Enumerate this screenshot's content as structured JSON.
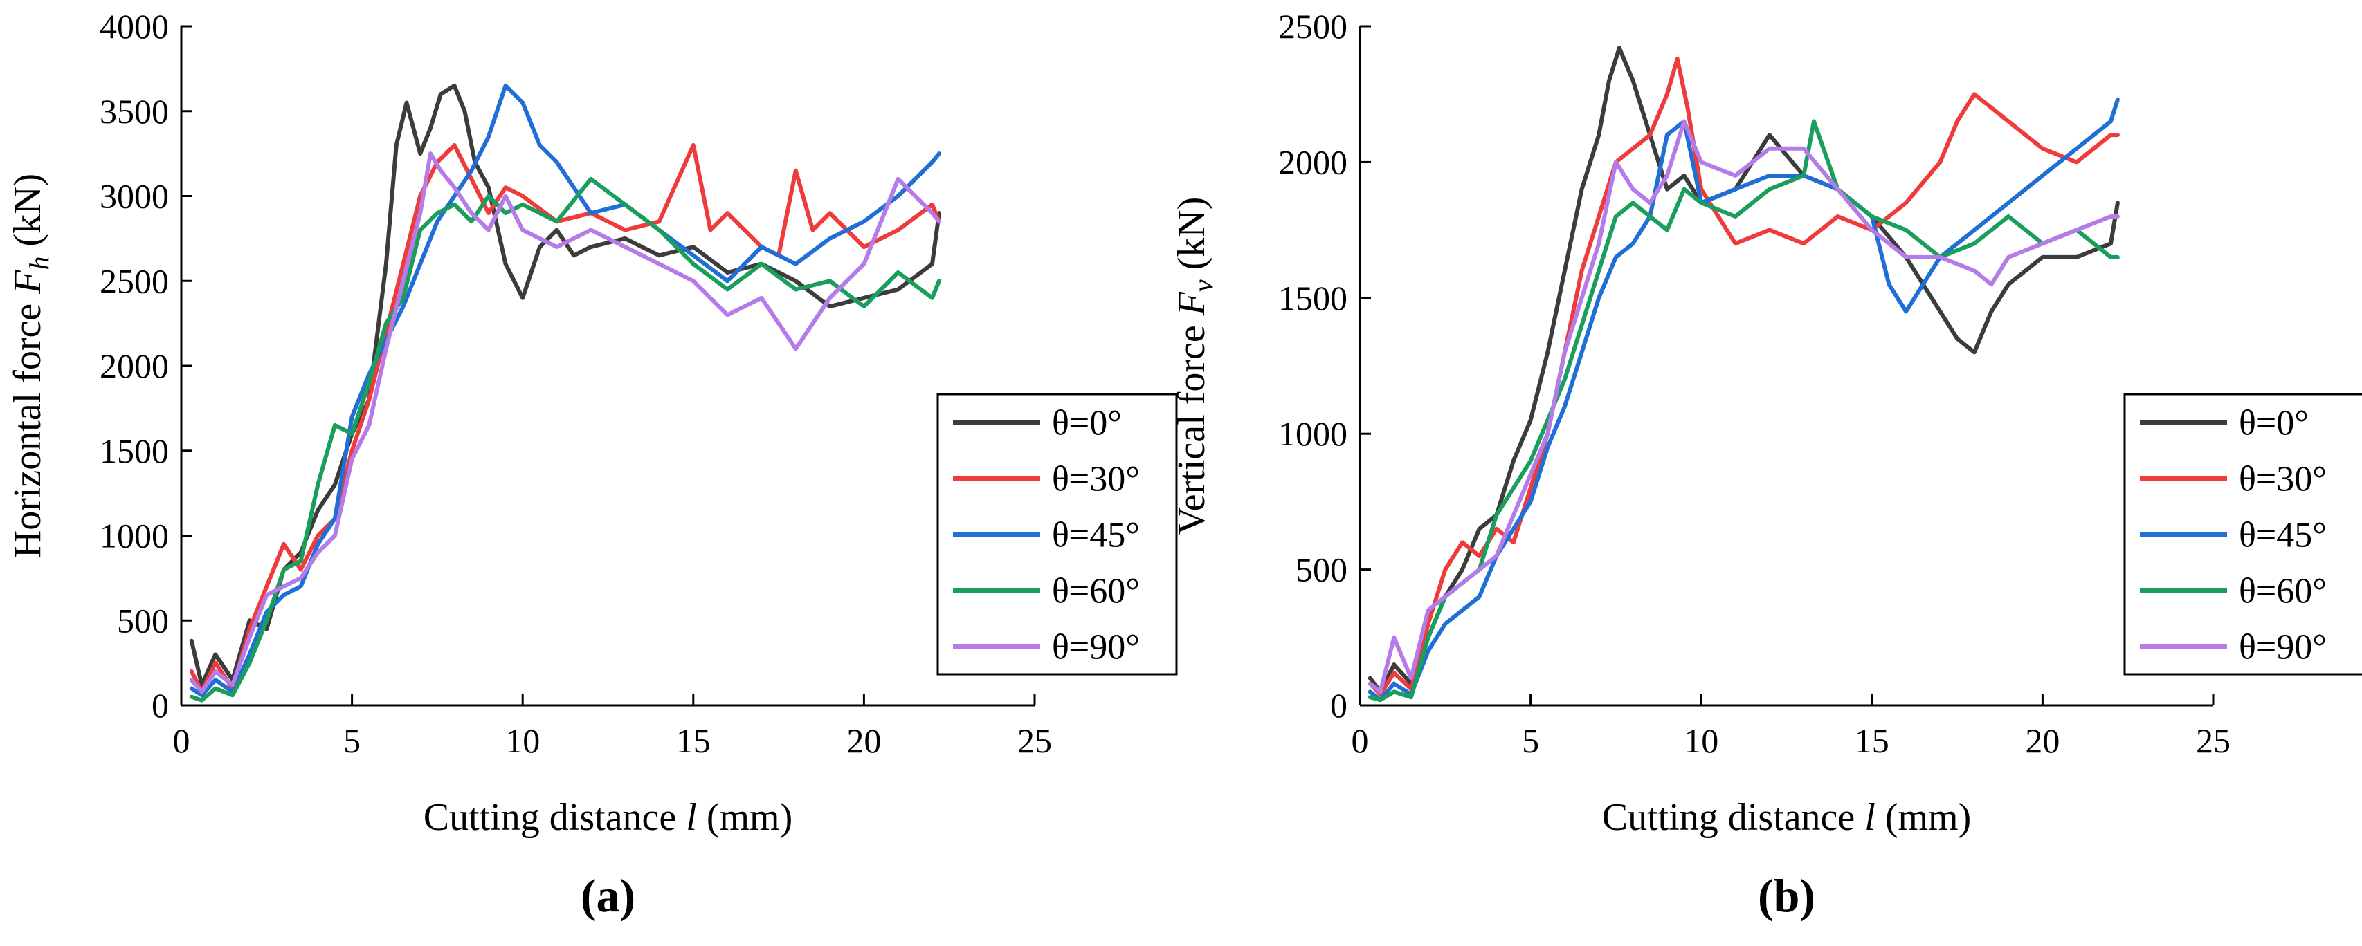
{
  "chart_data": [
    {
      "panel": "(a)",
      "type": "line",
      "xlabel": "Cutting distance",
      "xlabel_symbol": "l",
      "xlabel_unit": "(mm)",
      "ylabel": "Horizontal force",
      "ylabel_symbol": "F",
      "ylabel_subscript": "h",
      "ylabel_unit": "(kN)",
      "xlim": [
        0,
        25
      ],
      "ylim": [
        0,
        4000
      ],
      "xticks": [
        0,
        5,
        10,
        15,
        20,
        25
      ],
      "yticks": [
        0,
        500,
        1000,
        1500,
        2000,
        2500,
        3000,
        3500,
        4000
      ],
      "legend_position": "right-middle",
      "series": [
        {
          "name": "θ=0°",
          "color": "#3c3c3c",
          "x": [
            0.3,
            0.6,
            1.0,
            1.5,
            2.0,
            2.5,
            3.0,
            3.5,
            4.0,
            4.5,
            5.0,
            5.5,
            6.0,
            6.3,
            6.6,
            7.0,
            7.3,
            7.6,
            8.0,
            8.3,
            8.6,
            9.0,
            9.5,
            10.0,
            10.5,
            11.0,
            11.5,
            12.0,
            13.0,
            14.0,
            15.0,
            16.0,
            17.0,
            18.0,
            19.0,
            20.0,
            21.0,
            22.0,
            22.2
          ],
          "y": [
            380,
            120,
            300,
            150,
            500,
            450,
            800,
            900,
            1150,
            1300,
            1600,
            1800,
            2600,
            3300,
            3550,
            3250,
            3400,
            3600,
            3650,
            3500,
            3200,
            3050,
            2600,
            2400,
            2700,
            2800,
            2650,
            2700,
            2750,
            2650,
            2700,
            2550,
            2600,
            2500,
            2350,
            2400,
            2450,
            2600,
            2900
          ]
        },
        {
          "name": "θ=30°",
          "color": "#ee3b3b",
          "x": [
            0.3,
            0.6,
            1.0,
            1.5,
            2.0,
            2.5,
            3.0,
            3.5,
            4.0,
            4.5,
            5.0,
            5.5,
            6.0,
            6.5,
            7.0,
            7.5,
            8.0,
            8.5,
            9.0,
            9.5,
            10.0,
            11.0,
            12.0,
            13.0,
            14.0,
            15.0,
            15.5,
            16.0,
            17.0,
            17.5,
            18.0,
            18.5,
            19.0,
            20.0,
            21.0,
            22.0,
            22.2
          ],
          "y": [
            200,
            80,
            250,
            100,
            450,
            700,
            950,
            800,
            1000,
            1100,
            1500,
            1800,
            2200,
            2600,
            3000,
            3200,
            3300,
            3100,
            2900,
            3050,
            3000,
            2850,
            2900,
            2800,
            2850,
            3300,
            2800,
            2900,
            2700,
            2650,
            3150,
            2800,
            2900,
            2700,
            2800,
            2950,
            2850
          ]
        },
        {
          "name": "θ=45°",
          "color": "#1f6fd6",
          "x": [
            0.3,
            0.6,
            1.0,
            1.5,
            2.0,
            2.5,
            3.0,
            3.5,
            4.0,
            4.5,
            5.0,
            5.5,
            6.0,
            6.5,
            7.0,
            7.5,
            8.0,
            8.5,
            9.0,
            9.5,
            10.0,
            10.5,
            11.0,
            12.0,
            13.0,
            14.0,
            15.0,
            16.0,
            17.0,
            18.0,
            19.0,
            20.0,
            21.0,
            22.0,
            22.2
          ],
          "y": [
            100,
            60,
            150,
            80,
            300,
            550,
            650,
            700,
            950,
            1100,
            1700,
            1950,
            2150,
            2350,
            2600,
            2850,
            3000,
            3150,
            3350,
            3650,
            3550,
            3300,
            3200,
            2900,
            2950,
            2800,
            2650,
            2500,
            2700,
            2600,
            2750,
            2850,
            3000,
            3200,
            3250
          ]
        },
        {
          "name": "θ=60°",
          "color": "#1a9e5c",
          "x": [
            0.3,
            0.6,
            1.0,
            1.5,
            2.0,
            2.5,
            3.0,
            3.5,
            4.0,
            4.5,
            5.0,
            5.5,
            6.0,
            6.5,
            7.0,
            7.5,
            8.0,
            8.5,
            9.0,
            9.5,
            10.0,
            11.0,
            12.0,
            13.0,
            14.0,
            15.0,
            16.0,
            17.0,
            18.0,
            19.0,
            20.0,
            21.0,
            22.0,
            22.2
          ],
          "y": [
            50,
            30,
            100,
            60,
            250,
            500,
            800,
            850,
            1300,
            1650,
            1600,
            1900,
            2250,
            2400,
            2800,
            2900,
            2950,
            2850,
            3000,
            2900,
            2950,
            2850,
            3100,
            2950,
            2800,
            2600,
            2450,
            2600,
            2450,
            2500,
            2350,
            2550,
            2400,
            2500
          ]
        },
        {
          "name": "θ=90°",
          "color": "#b57be8",
          "x": [
            0.3,
            0.6,
            1.0,
            1.5,
            2.0,
            2.5,
            3.0,
            3.5,
            4.0,
            4.5,
            5.0,
            5.5,
            6.0,
            6.5,
            7.0,
            7.3,
            7.6,
            8.0,
            8.5,
            9.0,
            9.5,
            10.0,
            11.0,
            12.0,
            13.0,
            14.0,
            15.0,
            16.0,
            17.0,
            18.0,
            19.0,
            20.0,
            21.0,
            22.0,
            22.2
          ],
          "y": [
            150,
            80,
            200,
            120,
            400,
            650,
            700,
            750,
            900,
            1000,
            1450,
            1650,
            2100,
            2500,
            2900,
            3250,
            3150,
            3050,
            2900,
            2800,
            3000,
            2800,
            2700,
            2800,
            2700,
            2600,
            2500,
            2300,
            2400,
            2100,
            2400,
            2600,
            3100,
            2900,
            2850
          ]
        }
      ]
    },
    {
      "panel": "(b)",
      "type": "line",
      "xlabel": "Cutting distance",
      "xlabel_symbol": "l",
      "xlabel_unit": "(mm)",
      "ylabel": "Vertical force",
      "ylabel_symbol": "F",
      "ylabel_subscript": "v",
      "ylabel_unit": "(kN)",
      "xlim": [
        0,
        25
      ],
      "ylim": [
        0,
        2500
      ],
      "xticks": [
        0,
        5,
        10,
        15,
        20,
        25
      ],
      "yticks": [
        0,
        500,
        1000,
        1500,
        2000,
        2500
      ],
      "legend_position": "right-middle",
      "series": [
        {
          "name": "θ=0°",
          "color": "#3c3c3c",
          "x": [
            0.3,
            0.6,
            1.0,
            1.5,
            2.0,
            2.5,
            3.0,
            3.5,
            4.0,
            4.5,
            5.0,
            5.5,
            6.0,
            6.5,
            7.0,
            7.3,
            7.6,
            8.0,
            8.5,
            9.0,
            9.5,
            10.0,
            11.0,
            12.0,
            13.0,
            14.0,
            15.0,
            16.0,
            17.0,
            17.5,
            18.0,
            18.5,
            19.0,
            20.0,
            21.0,
            22.0,
            22.2
          ],
          "y": [
            100,
            50,
            150,
            80,
            250,
            400,
            500,
            650,
            700,
            900,
            1050,
            1300,
            1600,
            1900,
            2100,
            2300,
            2420,
            2300,
            2100,
            1900,
            1950,
            1850,
            1900,
            2100,
            1950,
            1900,
            1800,
            1650,
            1450,
            1350,
            1300,
            1450,
            1550,
            1650,
            1650,
            1700,
            1850
          ]
        },
        {
          "name": "θ=30°",
          "color": "#ee3b3b",
          "x": [
            0.3,
            0.6,
            1.0,
            1.5,
            2.0,
            2.5,
            3.0,
            3.5,
            4.0,
            4.5,
            5.0,
            5.5,
            6.0,
            6.5,
            7.0,
            7.5,
            8.0,
            8.5,
            9.0,
            9.3,
            9.6,
            10.0,
            11.0,
            12.0,
            13.0,
            14.0,
            15.0,
            16.0,
            17.0,
            17.5,
            18.0,
            18.5,
            19.0,
            20.0,
            21.0,
            22.0,
            22.2
          ],
          "y": [
            80,
            40,
            120,
            60,
            300,
            500,
            600,
            550,
            650,
            600,
            800,
            1000,
            1300,
            1600,
            1800,
            2000,
            2050,
            2100,
            2250,
            2380,
            2200,
            1900,
            1700,
            1750,
            1700,
            1800,
            1750,
            1850,
            2000,
            2150,
            2250,
            2200,
            2150,
            2050,
            2000,
            2100,
            2100
          ]
        },
        {
          "name": "θ=45°",
          "color": "#1f6fd6",
          "x": [
            0.3,
            0.6,
            1.0,
            1.5,
            2.0,
            2.5,
            3.0,
            3.5,
            4.0,
            4.5,
            5.0,
            5.5,
            6.0,
            6.5,
            7.0,
            7.5,
            8.0,
            8.5,
            9.0,
            9.5,
            10.0,
            11.0,
            12.0,
            13.0,
            14.0,
            15.0,
            15.5,
            16.0,
            17.0,
            18.0,
            19.0,
            20.0,
            21.0,
            22.0,
            22.2
          ],
          "y": [
            50,
            20,
            80,
            40,
            200,
            300,
            350,
            400,
            550,
            650,
            750,
            950,
            1100,
            1300,
            1500,
            1650,
            1700,
            1800,
            2100,
            2150,
            1850,
            1900,
            1950,
            1950,
            1900,
            1800,
            1550,
            1450,
            1650,
            1750,
            1850,
            1950,
            2050,
            2150,
            2230
          ]
        },
        {
          "name": "θ=60°",
          "color": "#1a9e5c",
          "x": [
            0.3,
            0.6,
            1.0,
            1.5,
            2.0,
            2.5,
            3.0,
            3.5,
            4.0,
            4.5,
            5.0,
            5.5,
            6.0,
            6.5,
            7.0,
            7.5,
            8.0,
            8.5,
            9.0,
            9.5,
            10.0,
            11.0,
            12.0,
            13.0,
            13.3,
            14.0,
            15.0,
            16.0,
            17.0,
            18.0,
            19.0,
            20.0,
            21.0,
            22.0,
            22.2
          ],
          "y": [
            30,
            20,
            50,
            30,
            250,
            400,
            450,
            500,
            700,
            800,
            900,
            1050,
            1200,
            1400,
            1600,
            1800,
            1850,
            1800,
            1750,
            1900,
            1850,
            1800,
            1900,
            1950,
            2150,
            1900,
            1800,
            1750,
            1650,
            1700,
            1800,
            1700,
            1750,
            1650,
            1650
          ]
        },
        {
          "name": "θ=90°",
          "color": "#b57be8",
          "x": [
            0.3,
            0.6,
            1.0,
            1.5,
            2.0,
            2.5,
            3.0,
            3.5,
            4.0,
            4.5,
            5.0,
            5.5,
            6.0,
            6.5,
            7.0,
            7.5,
            8.0,
            8.5,
            9.0,
            9.5,
            10.0,
            11.0,
            12.0,
            13.0,
            14.0,
            15.0,
            16.0,
            17.0,
            18.0,
            18.5,
            19.0,
            20.0,
            21.0,
            22.0,
            22.2
          ],
          "y": [
            80,
            50,
            250,
            100,
            350,
            400,
            450,
            500,
            550,
            700,
            850,
            1000,
            1300,
            1500,
            1700,
            2000,
            1900,
            1850,
            1950,
            2150,
            2000,
            1950,
            2050,
            2050,
            1900,
            1750,
            1650,
            1650,
            1600,
            1550,
            1650,
            1700,
            1750,
            1800,
            1800
          ]
        }
      ]
    }
  ]
}
